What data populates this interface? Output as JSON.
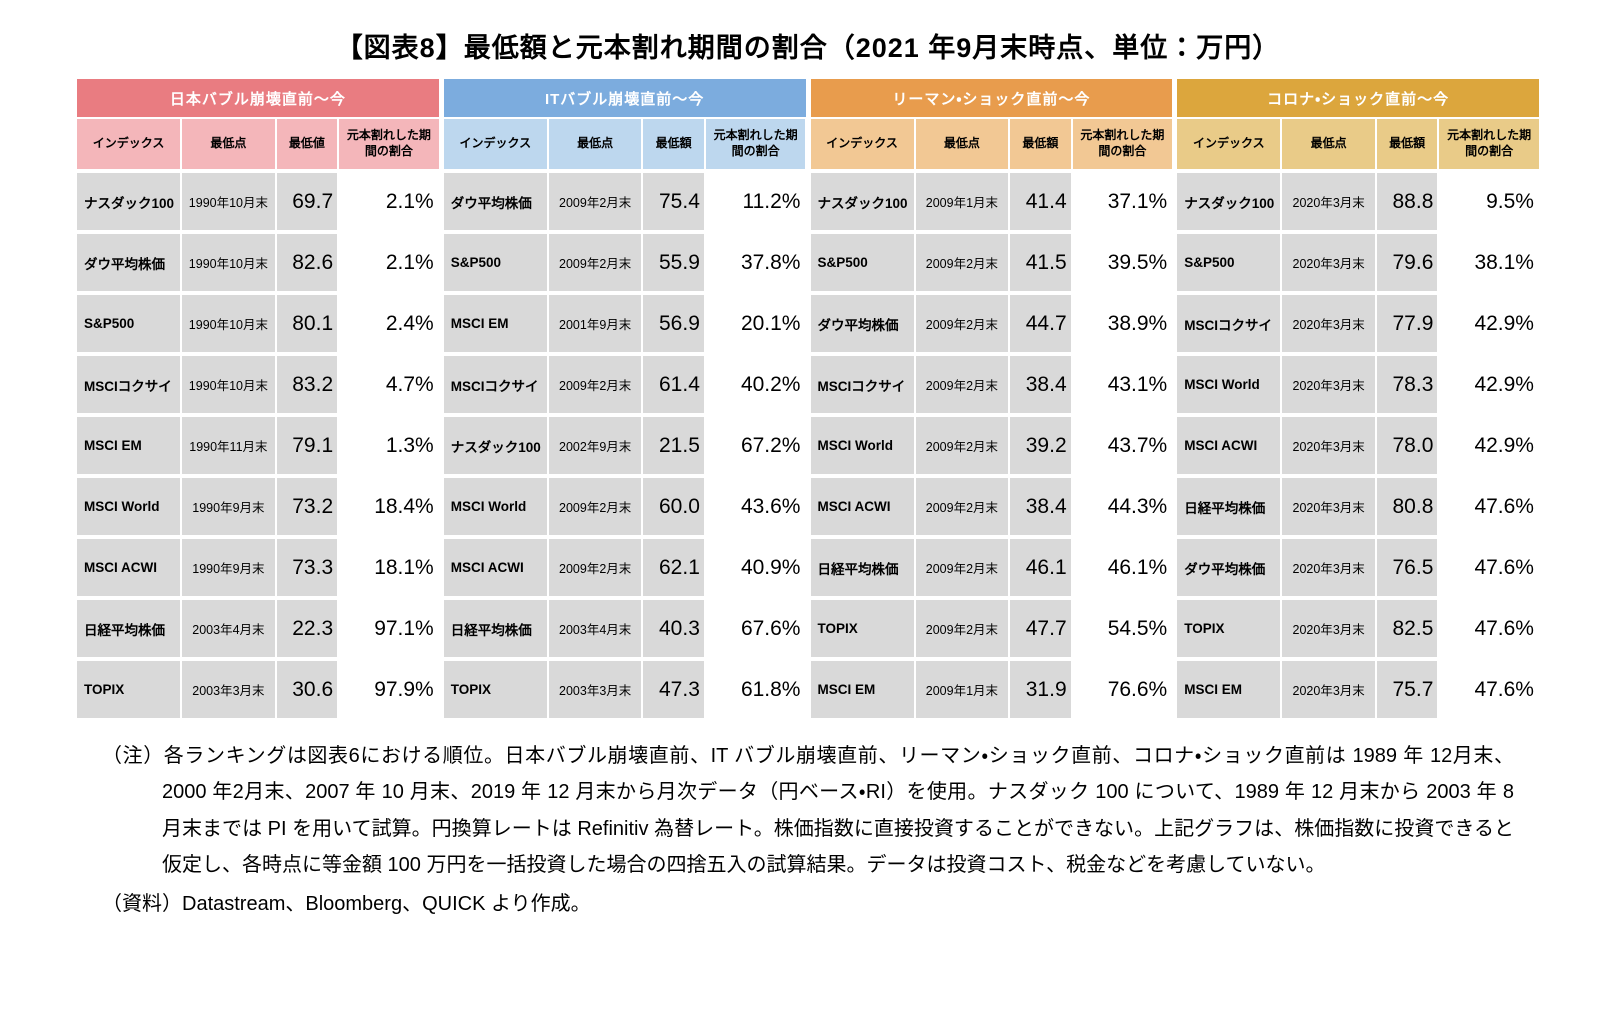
{
  "title": "【図表8】最低額と元本割れ期間の割合（2021 年9月末時点、単位：万円）",
  "chart_data": {
    "type": "table",
    "title": "【図表8】最低額と元本割れ期間の割合（2021 年9月末時点、単位：万円）",
    "row_background": "#D9D9D9",
    "groups": [
      {
        "header": "日本バブル崩壊直前～今",
        "colors": {
          "header": "#E97C81",
          "subheader": "#F4B6BA"
        },
        "columns": [
          "インデックス",
          "最低点",
          "最低値",
          "元本割れした期間の割合"
        ],
        "rows": [
          [
            "ナスダック100",
            "1990年10月末",
            "69.7",
            "2.1%"
          ],
          [
            "ダウ平均株価",
            "1990年10月末",
            "82.6",
            "2.1%"
          ],
          [
            "S&P500",
            "1990年10月末",
            "80.1",
            "2.4%"
          ],
          [
            "MSCIコクサイ",
            "1990年10月末",
            "83.2",
            "4.7%"
          ],
          [
            "MSCI EM",
            "1990年11月末",
            "79.1",
            "1.3%"
          ],
          [
            "MSCI World",
            "1990年9月末",
            "73.2",
            "18.4%"
          ],
          [
            "MSCI ACWI",
            "1990年9月末",
            "73.3",
            "18.1%"
          ],
          [
            "日経平均株価",
            "2003年4月末",
            "22.3",
            "97.1%"
          ],
          [
            "TOPIX",
            "2003年3月末",
            "30.6",
            "97.9%"
          ]
        ]
      },
      {
        "header": "ITバブル崩壊直前～今",
        "colors": {
          "header": "#7CACDE",
          "subheader": "#BDD7EE"
        },
        "columns": [
          "インデックス",
          "最低点",
          "最低額",
          "元本割れした期間の割合"
        ],
        "rows": [
          [
            "ダウ平均株価",
            "2009年2月末",
            "75.4",
            "11.2%"
          ],
          [
            "S&P500",
            "2009年2月末",
            "55.9",
            "37.8%"
          ],
          [
            "MSCI EM",
            "2001年9月末",
            "56.9",
            "20.1%"
          ],
          [
            "MSCIコクサイ",
            "2009年2月末",
            "61.4",
            "40.2%"
          ],
          [
            "ナスダック100",
            "2002年9月末",
            "21.5",
            "67.2%"
          ],
          [
            "MSCI World",
            "2009年2月末",
            "60.0",
            "43.6%"
          ],
          [
            "MSCI ACWI",
            "2009年2月末",
            "62.1",
            "40.9%"
          ],
          [
            "日経平均株価",
            "2003年4月末",
            "40.3",
            "67.6%"
          ],
          [
            "TOPIX",
            "2003年3月末",
            "47.3",
            "61.8%"
          ]
        ]
      },
      {
        "header": "リーマン・ショック直前～今",
        "colors": {
          "header": "#E89C4D",
          "subheader": "#F2C894"
        },
        "columns": [
          "インデックス",
          "最低点",
          "最低額",
          "元本割れした期間の割合"
        ],
        "rows": [
          [
            "ナスダック100",
            "2009年1月末",
            "41.4",
            "37.1%"
          ],
          [
            "S&P500",
            "2009年2月末",
            "41.5",
            "39.5%"
          ],
          [
            "ダウ平均株価",
            "2009年2月末",
            "44.7",
            "38.9%"
          ],
          [
            "MSCIコクサイ",
            "2009年2月末",
            "38.4",
            "43.1%"
          ],
          [
            "MSCI World",
            "2009年2月末",
            "39.2",
            "43.7%"
          ],
          [
            "MSCI ACWI",
            "2009年2月末",
            "38.4",
            "44.3%"
          ],
          [
            "日経平均株価",
            "2009年2月末",
            "46.1",
            "46.1%"
          ],
          [
            "TOPIX",
            "2009年2月末",
            "47.7",
            "54.5%"
          ],
          [
            "MSCI EM",
            "2009年1月末",
            "31.9",
            "76.6%"
          ]
        ]
      },
      {
        "header": "コロナ・ショック直前～今",
        "colors": {
          "header": "#DCA63D",
          "subheader": "#E9CB88"
        },
        "columns": [
          "インデックス",
          "最低点",
          "最低額",
          "元本割れした期間の割合"
        ],
        "rows": [
          [
            "ナスダック100",
            "2020年3月末",
            "88.8",
            "9.5%"
          ],
          [
            "S&P500",
            "2020年3月末",
            "79.6",
            "38.1%"
          ],
          [
            "MSCIコクサイ",
            "2020年3月末",
            "77.9",
            "42.9%"
          ],
          [
            "MSCI World",
            "2020年3月末",
            "78.3",
            "42.9%"
          ],
          [
            "MSCI ACWI",
            "2020年3月末",
            "78.0",
            "42.9%"
          ],
          [
            "日経平均株価",
            "2020年3月末",
            "80.8",
            "47.6%"
          ],
          [
            "ダウ平均株価",
            "2020年3月末",
            "76.5",
            "47.6%"
          ],
          [
            "TOPIX",
            "2020年3月末",
            "82.5",
            "47.6%"
          ],
          [
            "MSCI EM",
            "2020年3月末",
            "75.7",
            "47.6%"
          ]
        ]
      }
    ]
  },
  "notes": {
    "note": "（注）各ランキングは図表6における順位。日本バブル崩壊直前、IT バブル崩壊直前、リーマン・ショック直前、コロナ・ショック直前は 1989 年 12月末、2000 年2月末、2007 年 10 月末、2019 年 12 月末から月次データ（円ベース・RI）を使用。ナスダック 100 について、1989 年 12 月末から 2003 年 8 月末までは PI を用いて試算。円換算レートは Refinitiv 為替レート。株価指数に直接投資することができない。上記グラフは、株価指数に投資できると仮定し、各時点に等金額 100 万円を一括投資した場合の四捨五入の試算結果。データは投資コスト、税金などを考慮していない。",
    "source": "（資料）Datastream、Bloomberg、QUICK より作成。"
  }
}
